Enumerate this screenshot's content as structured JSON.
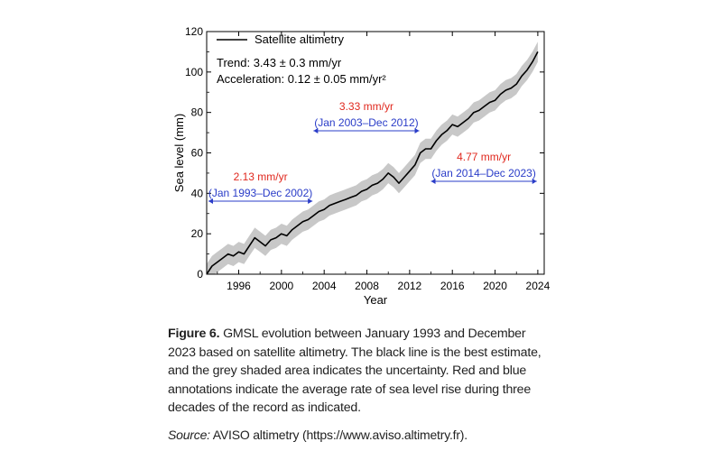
{
  "chart_data": {
    "type": "line",
    "xlabel": "Year",
    "ylabel": "Sea level (mm)",
    "xlim": [
      1993,
      2024.6
    ],
    "ylim": [
      0,
      120
    ],
    "x_ticks": [
      1996,
      2000,
      2004,
      2008,
      2012,
      2016,
      2020,
      2024
    ],
    "y_ticks": [
      0,
      20,
      40,
      60,
      80,
      100,
      120
    ],
    "legend": {
      "label": "Satellite altimetry",
      "position": "top-left"
    },
    "stats": {
      "trend": "Trend: 3.43 ± 0.3 mm/yr",
      "acceleration": "Acceleration: 0.12 ± 0.05 mm/yr²"
    },
    "series": [
      {
        "name": "Satellite altimetry",
        "x": [
          1993.0,
          1993.5,
          1994.0,
          1994.5,
          1995.0,
          1995.5,
          1996.0,
          1996.5,
          1997.0,
          1997.5,
          1998.0,
          1998.5,
          1999.0,
          1999.5,
          2000.0,
          2000.5,
          2001.0,
          2001.5,
          2002.0,
          2002.5,
          2003.0,
          2003.5,
          2004.0,
          2004.5,
          2005.0,
          2005.5,
          2006.0,
          2006.5,
          2007.0,
          2007.5,
          2008.0,
          2008.5,
          2009.0,
          2009.5,
          2010.0,
          2010.5,
          2011.0,
          2011.5,
          2012.0,
          2012.5,
          2013.0,
          2013.5,
          2014.0,
          2014.5,
          2015.0,
          2015.5,
          2016.0,
          2016.5,
          2017.0,
          2017.5,
          2018.0,
          2018.5,
          2019.0,
          2019.5,
          2020.0,
          2020.5,
          2021.0,
          2021.5,
          2022.0,
          2022.5,
          2023.0,
          2023.5,
          2024.0
        ],
        "y": [
          0,
          4,
          6,
          8,
          10,
          9,
          11,
          10,
          14,
          18,
          16,
          14,
          17,
          18,
          20,
          19,
          22,
          24,
          26,
          27,
          29,
          31,
          32,
          34,
          35,
          36,
          37,
          38,
          39,
          41,
          42,
          44,
          45,
          47,
          50,
          48,
          45,
          48,
          51,
          54,
          60,
          62,
          62,
          66,
          69,
          71,
          74,
          73,
          75,
          77,
          80,
          81,
          83,
          85,
          86,
          89,
          91,
          92,
          94,
          98,
          101,
          105,
          110
        ],
        "uncertainty": 5
      }
    ],
    "annotations": [
      {
        "rate": "2.13 mm/yr",
        "period": "(Jan 1993–Dec 2002)",
        "x_start": 1993.0,
        "x_end": 2002.9
      },
      {
        "rate": "3.33 mm/yr",
        "period": "(Jan 2003–Dec 2012)",
        "x_start": 2003.0,
        "x_end": 2012.9
      },
      {
        "rate": "4.77 mm/yr",
        "period": "(Jan 2014–Dec 2023)",
        "x_start": 2014.0,
        "x_end": 2023.9
      }
    ],
    "colors": {
      "line": "#000000",
      "band": "#c8c8c8",
      "rate": "#e0281e",
      "period": "#2a3cc8"
    }
  },
  "caption": {
    "label": "Figure 6.",
    "text": " GMSL evolution between January 1993 and December 2023 based on satellite altimetry. The black line is the best estimate, and the grey shaded area indicates the uncertainty. Red and blue annotations indicate the average rate of sea level rise during three decades of the record as indicated."
  },
  "source": {
    "label": "Source:",
    "text": " AVISO altimetry (https://www.aviso.altimetry.fr)."
  }
}
